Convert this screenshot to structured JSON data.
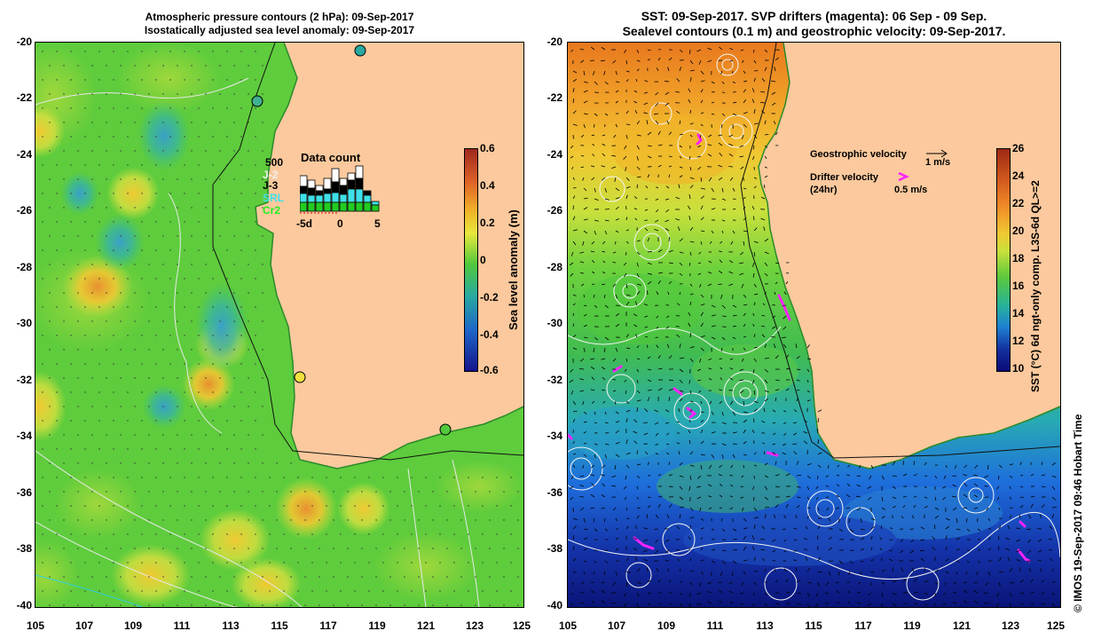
{
  "left_panel": {
    "title_line1": "Atmospheric pressure contours (2 hPa): 09-Sep-2017",
    "title_line2": "Isostatically adjusted sea level anomaly: 09-Sep-2017",
    "y_ticks": [
      "-20",
      "-22",
      "-24",
      "-26",
      "-28",
      "-30",
      "-32",
      "-34",
      "-36",
      "-38",
      "-40"
    ],
    "x_ticks": [
      "105",
      "107",
      "109",
      "111",
      "113",
      "115",
      "117",
      "119",
      "121",
      "123",
      "125"
    ],
    "colorbar": {
      "label": "Sea level anomaly (m)",
      "ticks": [
        "0.6",
        "0.4",
        "0.2",
        "0",
        "-0.2",
        "-0.4",
        "-0.6"
      ],
      "colors": [
        "#a0281e",
        "#e06428",
        "#f0b428",
        "#e8e83c",
        "#50c83c",
        "#28aaa0",
        "#1e64c8",
        "#14148c"
      ]
    },
    "data_count": {
      "title": "Data count",
      "scale_label": "500",
      "satellites": [
        {
          "name": "J-2",
          "color": "#ffffff"
        },
        {
          "name": "J-3",
          "color": "#000000"
        },
        {
          "name": "SRL",
          "color": "#40e0e8"
        },
        {
          "name": "Cr2",
          "color": "#22cc22"
        }
      ],
      "x_ticks": [
        "-5d",
        "0",
        "5"
      ]
    },
    "colors": {
      "land": "#fbc99d",
      "sea_base": "#5ecc3c"
    }
  },
  "right_panel": {
    "title_line1": "SST: 09-Sep-2017. SVP drifters (magenta): 06 Sep - 09 Sep.",
    "title_line2": "Sealevel contours (0.1 m) and geostrophic velocity: 09-Sep-2017.",
    "y_ticks": [
      "-20",
      "-22",
      "-24",
      "-26",
      "-28",
      "-30",
      "-32",
      "-34",
      "-36",
      "-38",
      "-40"
    ],
    "x_ticks": [
      "105",
      "107",
      "109",
      "111",
      "113",
      "115",
      "117",
      "119",
      "121",
      "123",
      "125"
    ],
    "colorbar": {
      "label": "SST (°C) 6d ngt-only comp. L3S-6d QL>=2",
      "ticks": [
        "26",
        "24",
        "22",
        "20",
        "18",
        "16",
        "14",
        "12",
        "10"
      ],
      "colors": [
        "#9c2814",
        "#d25a1e",
        "#f08c28",
        "#f0c832",
        "#c8e03c",
        "#5ac83c",
        "#28b496",
        "#1e82d2",
        "#1432a0",
        "#0a0a78"
      ]
    },
    "legend": {
      "geo_label": "Geostrophic velocity",
      "geo_scale": "1 m/s",
      "drifter_label": "Drifter velocity",
      "drifter_sub": "(24hr)",
      "drifter_scale": "0.5 m/s"
    },
    "colors": {
      "land": "#fbc99d",
      "drifter": "#ff22ff"
    }
  },
  "credit": "© IMOS 19-Sep-2017 09:46 Hobart Time"
}
